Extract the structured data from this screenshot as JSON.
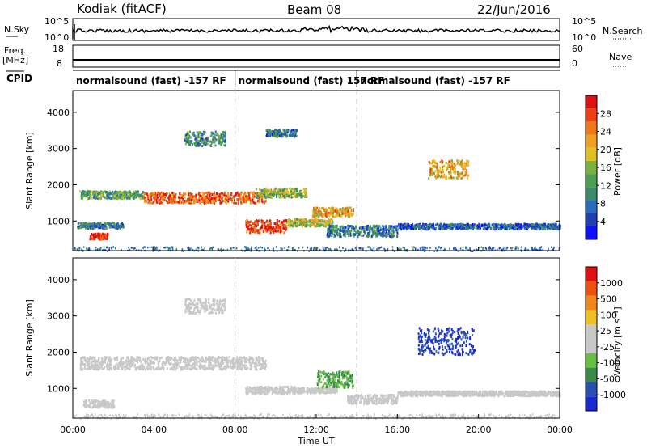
{
  "header": {
    "station": "Kodiak (fitACF)",
    "beam": "Beam 08",
    "date": "22/Jun/2016"
  },
  "top_panels": {
    "nsky_label": "N.Sky",
    "nsearch_label": "N.Search",
    "freq_label": "Freq.",
    "freq_unit": "[MHz]",
    "nave_label": "Nave",
    "cpid_label": "CPID",
    "nsky_ticks": [
      "10^5",
      "10^0"
    ],
    "nsearch_ticks": [
      "10^5",
      "10^0"
    ],
    "freq_ticks": [
      "18",
      "8"
    ],
    "nave_ticks": [
      "60",
      "0"
    ]
  },
  "cpid_segments": [
    {
      "label": "normalsound (fast) -157 RF",
      "start": 0,
      "end": 8
    },
    {
      "label": "normalsound (fast) 157 RF",
      "start": 8,
      "end": 14
    },
    {
      "label": "normalsound (fast) -157 RF",
      "start": 14,
      "end": 24
    }
  ],
  "x_axis": {
    "label": "Time UT",
    "ticks": [
      "00:00",
      "04:00",
      "08:00",
      "12:00",
      "16:00",
      "20:00",
      "00:00"
    ],
    "range_hours": [
      0,
      24
    ]
  },
  "panels": {
    "power": {
      "ylabel": "Slant Range [km]",
      "yticks": [
        "4000",
        "3000",
        "2000",
        "1000"
      ],
      "colorbar_label": "Power [dB]",
      "colorbar_ticks": [
        "28",
        "24",
        "20",
        "16",
        "12",
        "8",
        "4"
      ],
      "colors": [
        "#1010ff",
        "#1e40b0",
        "#2a6cb8",
        "#3c8a6a",
        "#4aa050",
        "#7ab040",
        "#e0c020",
        "#f0a020",
        "#f07818",
        "#ec4010",
        "#e01010"
      ]
    },
    "velocity": {
      "ylabel": "Slant Range [km]",
      "yticks": [
        "4000",
        "3000",
        "2000",
        "1000"
      ],
      "colorbar_label": "Velocity [m s⁻¹]",
      "colorbar_ticks": [
        "1000",
        "500",
        "100",
        "25",
        "-25",
        "-100",
        "-500",
        "-1000"
      ],
      "colors": [
        "#1a2ad0",
        "#2850b0",
        "#3a8a4a",
        "#66c040",
        "#c8c8c8",
        "#c8c8c8",
        "#f0c020",
        "#f08818",
        "#ee5010",
        "#e01010"
      ]
    }
  },
  "chart_data": [
    {
      "type": "heatmap",
      "title": "Power",
      "x_unit": "hours UT",
      "y_unit": "km",
      "xlim": [
        0,
        24
      ],
      "ylim": [
        180,
        4600
      ],
      "value_range": [
        0,
        30
      ],
      "features": [
        {
          "t": [
            0.8,
            1.7
          ],
          "range": [
            520,
            680
          ],
          "value": 28
        },
        {
          "t": [
            0.2,
            2.5
          ],
          "range": [
            820,
            980
          ],
          "value": 8
        },
        {
          "t": [
            0.3,
            3.5
          ],
          "range": [
            1650,
            1850
          ],
          "value": 12
        },
        {
          "t": [
            3.5,
            9.5
          ],
          "range": [
            1520,
            1820
          ],
          "value": 24
        },
        {
          "t": [
            9.0,
            11.5
          ],
          "range": [
            1680,
            1930
          ],
          "value": 14
        },
        {
          "t": [
            8.5,
            10.5
          ],
          "range": [
            700,
            1050
          ],
          "value": 27
        },
        {
          "t": [
            10.5,
            12.8
          ],
          "range": [
            880,
            1080
          ],
          "value": 16
        },
        {
          "t": [
            11.8,
            13.8
          ],
          "range": [
            1150,
            1400
          ],
          "value": 20
        },
        {
          "t": [
            12.5,
            16.0
          ],
          "range": [
            600,
            900
          ],
          "value": 8
        },
        {
          "t": [
            16.0,
            24.0
          ],
          "range": [
            800,
            950
          ],
          "value": 6
        },
        {
          "t": [
            17.5,
            19.5
          ],
          "range": [
            2200,
            2700
          ],
          "value": 20
        },
        {
          "t": [
            5.5,
            7.5
          ],
          "range": [
            3100,
            3500
          ],
          "value": 10
        },
        {
          "t": [
            9.5,
            11.0
          ],
          "range": [
            3350,
            3550
          ],
          "value": 8
        }
      ]
    },
    {
      "type": "heatmap",
      "title": "Velocity",
      "x_unit": "hours UT",
      "y_unit": "km",
      "xlim": [
        0,
        24
      ],
      "ylim": [
        180,
        4600
      ],
      "value_range": [
        -1000,
        1000
      ],
      "features": [
        {
          "t": [
            0.5,
            2.0
          ],
          "range": [
            500,
            700
          ],
          "value": 0
        },
        {
          "t": [
            0.3,
            9.5
          ],
          "range": [
            1550,
            1900
          ],
          "value": 0
        },
        {
          "t": [
            8.5,
            11.0
          ],
          "range": [
            880,
            1080
          ],
          "value": 100
        },
        {
          "t": [
            11.0,
            13.0
          ],
          "range": [
            900,
            1050
          ],
          "value": 30
        },
        {
          "t": [
            12.0,
            13.8
          ],
          "range": [
            1050,
            1500
          ],
          "value": -400
        },
        {
          "t": [
            13.5,
            16.0
          ],
          "range": [
            600,
            850
          ],
          "value": -60
        },
        {
          "t": [
            16.0,
            24.0
          ],
          "range": [
            820,
            950
          ],
          "value": 0
        },
        {
          "t": [
            17.0,
            19.8
          ],
          "range": [
            1950,
            2700
          ],
          "value": -800
        },
        {
          "t": [
            5.5,
            7.5
          ],
          "range": [
            3100,
            3500
          ],
          "value": -60
        }
      ]
    }
  ]
}
